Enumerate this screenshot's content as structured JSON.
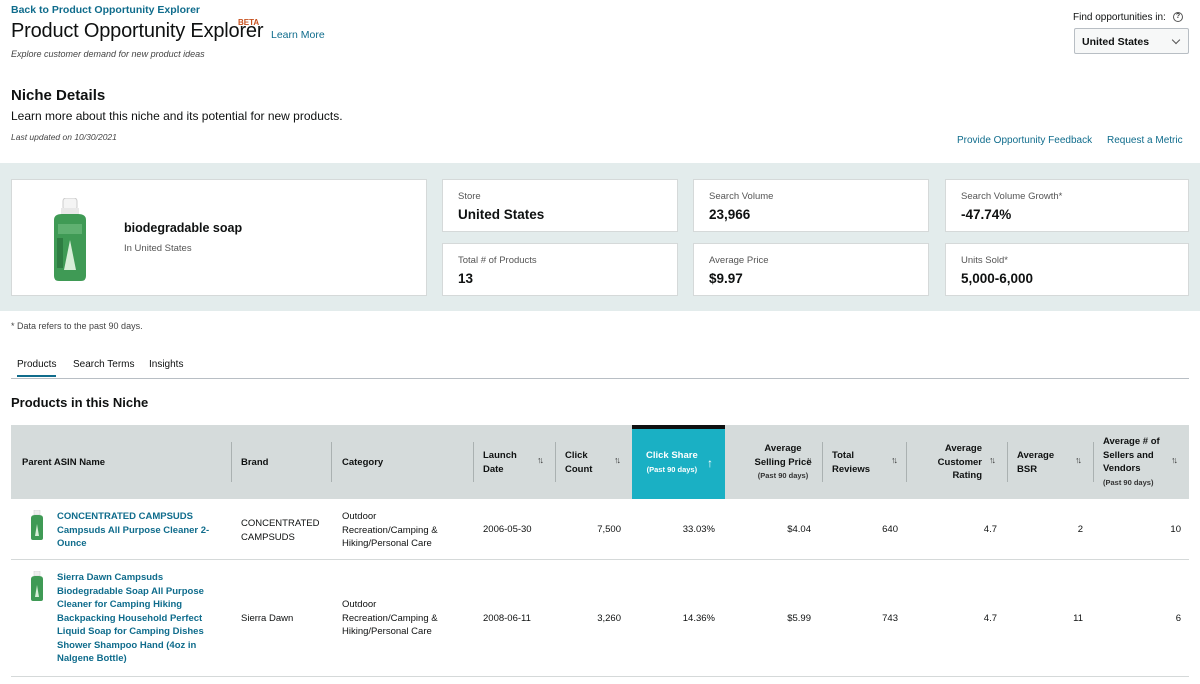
{
  "header": {
    "back_link": "Back to Product Opportunity Explorer",
    "title": "Product Opportunity Explorer",
    "beta_badge": "BETA",
    "learn_more": "Learn More",
    "subtitle": "Explore customer demand for new product ideas",
    "find_label": "Find opportunities in:",
    "help_icon": "?",
    "store_selected": "United States"
  },
  "niche_details": {
    "title": "Niche Details",
    "description": "Learn more about this niche and its potential for new products.",
    "last_updated": "Last updated on 10/30/2021",
    "feedback_link": "Provide Opportunity Feedback",
    "request_metric_link": "Request a Metric"
  },
  "niche_card": {
    "name": "biodegradable soap",
    "store": "In United States",
    "image_icon": "product-bottle-icon"
  },
  "metrics": [
    {
      "label": "Store",
      "value": "United States"
    },
    {
      "label": "Search Volume",
      "value": "23,966"
    },
    {
      "label": "Search Volume Growth*",
      "value": "-47.74%"
    },
    {
      "label": "Total # of Products",
      "value": "13"
    },
    {
      "label": "Average Price",
      "value": "$9.97"
    },
    {
      "label": "Units Sold*",
      "value": "5,000-6,000"
    }
  ],
  "footnote": "* Data refers to the past 90 days.",
  "tabs": [
    {
      "label": "Products",
      "active": true
    },
    {
      "label": "Search Terms",
      "active": false
    },
    {
      "label": "Insights",
      "active": false
    }
  ],
  "products_section": {
    "title": "Products in this Niche"
  },
  "table": {
    "columns": {
      "parent_asin": "Parent ASIN Name",
      "brand": "Brand",
      "category": "Category",
      "launch_date_1": "Launch",
      "launch_date_2": "Date",
      "click_count_1": "Click",
      "click_count_2": "Count",
      "click_share": "Click Share",
      "click_share_sub": "(Past 90 days)",
      "avg_price_1": "Average",
      "avg_price_2": "Selling Price",
      "avg_price_sub": "(Past 90 days)",
      "reviews_1": "Total",
      "reviews_2": "Reviews",
      "rating_1": "Average",
      "rating_2": "Customer",
      "rating_3": "Rating",
      "bsr_1": "Average",
      "bsr_2": "BSR",
      "sellers_1": "Average # of",
      "sellers_2": "Sellers and",
      "sellers_3": "Vendors",
      "sellers_sub": "(Past 90 days)",
      "sort_icon": "↑↓",
      "sort_active_icon": "↑"
    },
    "rows": [
      {
        "name_lines": [
          "CONCENTRATED CAMPSUDS",
          "Campsuds All Purpose Cleaner 2-",
          "Ounce"
        ],
        "brand_lines": [
          "CONCENTRATED",
          "CAMPSUDS"
        ],
        "category_lines": [
          "Outdoor",
          "Recreation/Camping &",
          "Hiking/Personal Care"
        ],
        "launch_date": "2006-05-30",
        "click_count": "7,500",
        "click_share": "33.03%",
        "avg_price": "$4.04",
        "reviews": "640",
        "rating": "4.7",
        "bsr": "2",
        "sellers": "10"
      },
      {
        "name_lines": [
          "Sierra Dawn Campsuds",
          "Biodegradable Soap All Purpose",
          "Cleaner for Camping Hiking",
          "Backpacking Household Perfect",
          "Liquid Soap for Camping Dishes",
          "Shower Shampoo Hand (4oz in",
          "Nalgene Bottle)"
        ],
        "brand_lines": [
          "Sierra Dawn"
        ],
        "category_lines": [
          "Outdoor",
          "Recreation/Camping &",
          "Hiking/Personal Care"
        ],
        "launch_date": "2008-06-11",
        "click_count": "3,260",
        "click_share": "14.36%",
        "avg_price": "$5.99",
        "reviews": "743",
        "rating": "4.7",
        "bsr": "11",
        "sellers": "6"
      }
    ]
  }
}
